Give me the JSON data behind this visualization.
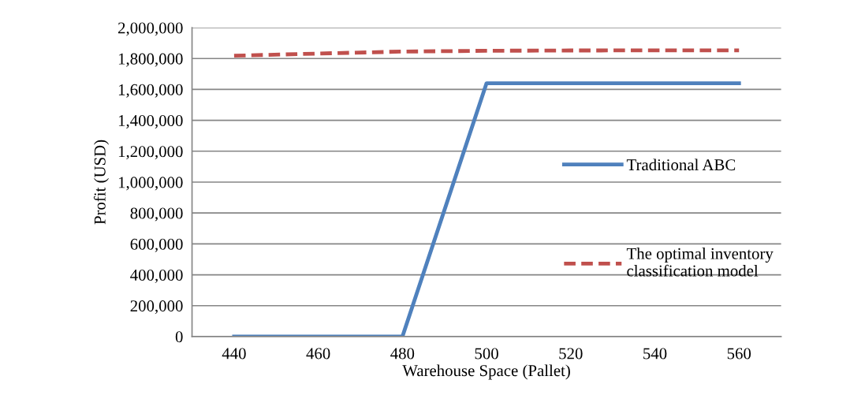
{
  "chart_data": {
    "type": "line",
    "xlabel": "Warehouse Space (Pallet)",
    "ylabel": "Profit (USD)",
    "categories": [
      "440",
      "460",
      "480",
      "500",
      "520",
      "540",
      "560"
    ],
    "series": [
      {
        "name": "Traditional ABC",
        "color": "#4f81bd",
        "values": [
          0,
          0,
          0,
          1640000,
          1640000,
          1640000,
          1640000
        ],
        "line_style": "solid"
      },
      {
        "name": "The optimal inventory classification model",
        "color": "#c0504d",
        "values": [
          1818000,
          1832000,
          1845000,
          1850000,
          1852000,
          1853000,
          1853000
        ],
        "line_style": "dashed"
      }
    ],
    "ylim": [
      0,
      2000000
    ],
    "yticks": [
      {
        "value": 0,
        "label": "0"
      },
      {
        "value": 200000,
        "label": "200,000"
      },
      {
        "value": 400000,
        "label": "400,000"
      },
      {
        "value": 600000,
        "label": "600,000"
      },
      {
        "value": 800000,
        "label": "800,000"
      },
      {
        "value": 1000000,
        "label": "1,000,000"
      },
      {
        "value": 1200000,
        "label": "1,200,000"
      },
      {
        "value": 1400000,
        "label": "1,400,000"
      },
      {
        "value": 1600000,
        "label": "1,600,000"
      },
      {
        "value": 1800000,
        "label": "1,800,000"
      },
      {
        "value": 2000000,
        "label": "2,000,000"
      }
    ],
    "grid": "y",
    "legend": "right",
    "marker": "none"
  }
}
